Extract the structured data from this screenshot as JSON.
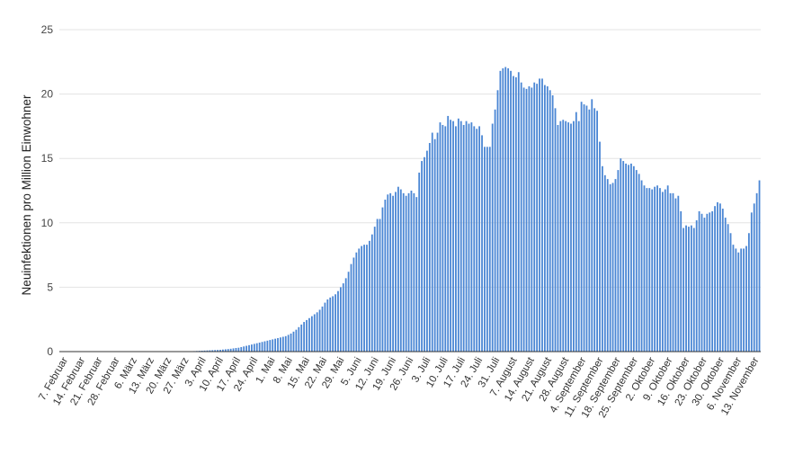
{
  "chart_data": {
    "type": "bar",
    "title": "",
    "xlabel": "",
    "ylabel": "Neuinfektionen pro Million Einwohner",
    "ylim": [
      0,
      25
    ],
    "yticks": [
      0,
      5,
      10,
      15,
      20,
      25
    ],
    "grid": true,
    "legend": "none",
    "bar_color": "#4a86d4",
    "x_tick_labels": [
      "7. Februar",
      "14. Februar",
      "21. Februar",
      "28. Februar",
      "6. März",
      "13. März",
      "20. März",
      "27. März",
      "3. April",
      "10. April",
      "17. April",
      "24. April",
      "1. Mai",
      "8. Mai",
      "15. Mai",
      "22. Mai",
      "29. Mai",
      "5. Juni",
      "12. Juni",
      "19. Juni",
      "26. Juni",
      "3. Juli",
      "10. Juli",
      "17. Juli",
      "24. Juli",
      "31. Juli",
      "7. August",
      "14. August",
      "21. August",
      "28. August",
      "4. September",
      "11. September",
      "18. September",
      "25. September",
      "2. Oktober",
      "9. Oktober",
      "16. Oktober",
      "23. Oktober",
      "30. Oktober",
      "6. November",
      "13. November"
    ],
    "values": [
      0,
      0,
      0,
      0,
      0,
      0,
      0,
      0,
      0,
      0,
      0,
      0,
      0,
      0,
      0,
      0,
      0,
      0,
      0,
      0,
      0,
      0,
      0,
      0,
      0,
      0,
      0,
      0,
      0,
      0,
      0,
      0,
      0,
      0,
      0,
      0,
      0,
      0,
      0,
      0,
      0,
      0,
      0,
      0,
      0,
      0,
      0,
      0.01,
      0.02,
      0.02,
      0.03,
      0.04,
      0.05,
      0.06,
      0.07,
      0.08,
      0.09,
      0.1,
      0.11,
      0.12,
      0.13,
      0.14,
      0.16,
      0.18,
      0.2,
      0.22,
      0.25,
      0.28,
      0.3,
      0.35,
      0.4,
      0.45,
      0.5,
      0.55,
      0.6,
      0.65,
      0.7,
      0.75,
      0.8,
      0.85,
      0.9,
      0.95,
      1.0,
      1.05,
      1.1,
      1.15,
      1.2,
      1.3,
      1.4,
      1.55,
      1.7,
      1.9,
      2.1,
      2.3,
      2.45,
      2.6,
      2.75,
      2.9,
      3.05,
      3.25,
      3.5,
      3.8,
      4.05,
      4.2,
      4.3,
      4.45,
      4.7,
      5.0,
      5.3,
      5.7,
      6.2,
      6.8,
      7.3,
      7.7,
      8.0,
      8.2,
      8.3,
      8.3,
      8.6,
      9.1,
      9.7,
      10.3,
      10.3,
      11.2,
      11.8,
      12.2,
      12.3,
      12.1,
      12.4,
      12.8,
      12.6,
      12.3,
      12.1,
      12.3,
      12.5,
      12.3,
      12.0,
      13.9,
      14.8,
      15.1,
      15.6,
      16.2,
      17.0,
      16.5,
      17.0,
      17.8,
      17.6,
      17.5,
      18.3,
      18.0,
      17.9,
      17.5,
      18.1,
      17.9,
      17.6,
      17.9,
      17.7,
      17.8,
      17.5,
      17.3,
      17.5,
      16.8,
      15.9,
      15.9,
      15.9,
      17.7,
      18.8,
      20.3,
      21.8,
      22.0,
      22.1,
      22.0,
      21.8,
      21.4,
      21.3,
      21.7,
      20.9,
      20.5,
      20.4,
      20.6,
      20.5,
      20.9,
      20.8,
      21.2,
      21.2,
      20.7,
      20.6,
      20.3,
      19.9,
      18.9,
      17.6,
      17.9,
      18.0,
      17.9,
      17.8,
      17.7,
      17.9,
      18.6,
      17.9,
      19.4,
      19.2,
      19.1,
      18.8,
      19.6,
      18.9,
      18.7,
      16.3,
      14.4,
      13.7,
      13.4,
      13.0,
      13.1,
      13.4,
      14.1,
      15.0,
      14.8,
      14.6,
      14.5,
      14.6,
      14.4,
      14.1,
      13.8,
      13.3,
      12.9,
      12.7,
      12.7,
      12.6,
      12.8,
      12.9,
      12.7,
      12.4,
      12.6,
      12.9,
      12.3,
      12.3,
      11.9,
      12.1,
      10.9,
      9.6,
      9.8,
      9.7,
      9.8,
      9.6,
      10.2,
      10.9,
      10.7,
      10.4,
      10.7,
      10.8,
      10.9,
      11.3,
      11.6,
      11.5,
      11.1,
      10.4,
      9.9,
      9.2,
      8.3,
      8.0,
      7.7,
      8.0,
      8.0,
      8.2,
      9.2,
      10.8,
      11.5,
      12.3,
      13.3
    ]
  }
}
